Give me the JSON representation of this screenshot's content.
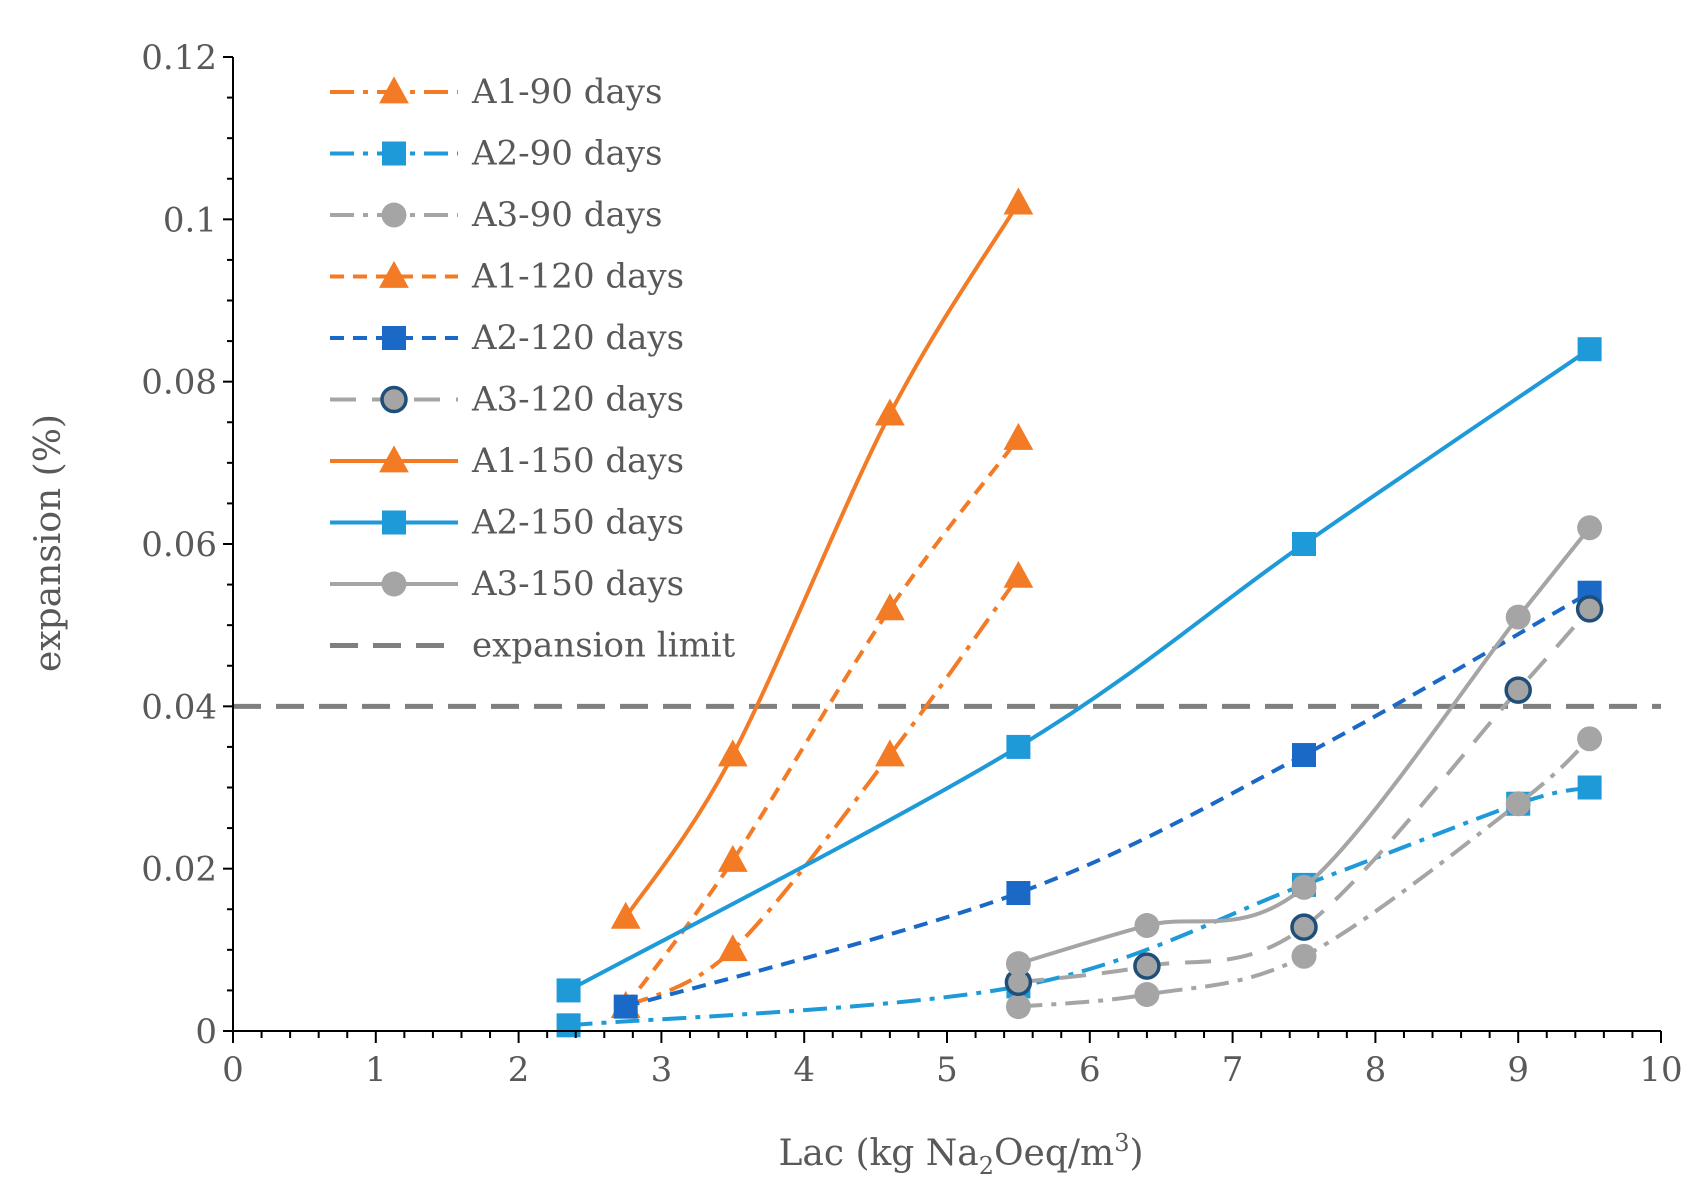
{
  "chart_data": {
    "type": "line",
    "title": "",
    "xlabel": {
      "prefix": "Lac (kg Na",
      "sub": "2",
      "mid": "Oeq/m",
      "sup": "3",
      "suffix": ")"
    },
    "ylabel": "expansion (%)",
    "xlim": [
      0,
      10
    ],
    "ylim": [
      0,
      0.12
    ],
    "xticks": [
      "0",
      "1",
      "2",
      "3",
      "4",
      "5",
      "6",
      "7",
      "8",
      "9",
      "10"
    ],
    "yticks": [
      "0",
      "0.02",
      "0.04",
      "0.06",
      "0.08",
      "0.1",
      "0.12"
    ],
    "legend_position": "top-left",
    "grid": false,
    "reference_line": {
      "name": "expansion limit",
      "y": 0.04,
      "color": "#7f7f7f"
    },
    "series": [
      {
        "name": "A1-90 days",
        "color": "#f47b25",
        "marker": "triangle",
        "dash": "dashdot",
        "x": [
          2.75,
          3.5,
          4.6,
          5.5
        ],
        "y": [
          0.003,
          0.01,
          0.034,
          0.056
        ]
      },
      {
        "name": "A2-90 days",
        "color": "#1f9ad8",
        "marker": "square",
        "dash": "dashdot",
        "x": [
          2.35,
          5.5,
          7.5,
          9,
          9.5
        ],
        "y": [
          0.0007,
          0.0055,
          0.018,
          0.028,
          0.03
        ]
      },
      {
        "name": "A3-90 days",
        "color": "#a5a5a5",
        "marker": "circle",
        "dash": "dashdot",
        "x": [
          5.5,
          6.4,
          7.5,
          9,
          9.5
        ],
        "y": [
          0.003,
          0.0045,
          0.0092,
          0.028,
          0.036
        ]
      },
      {
        "name": "A1-120 days",
        "color": "#f47b25",
        "marker": "triangle",
        "dash": "dash",
        "x": [
          2.75,
          3.5,
          4.6,
          5.5
        ],
        "y": [
          0.003,
          0.021,
          0.052,
          0.073
        ]
      },
      {
        "name": "A2-120 days",
        "color": "#1b69c7",
        "marker": "square",
        "dash": "dash",
        "x": [
          2.75,
          5.5,
          7.5,
          9.5
        ],
        "y": [
          0.003,
          0.017,
          0.034,
          0.054
        ]
      },
      {
        "name": "A3-120 days",
        "color": "#a5a5a5",
        "marker": "circle-outline",
        "dash": "longdash",
        "x": [
          5.5,
          6.4,
          7.5,
          9,
          9.5
        ],
        "y": [
          0.006,
          0.008,
          0.0128,
          0.042,
          0.052
        ]
      },
      {
        "name": "A1-150 days",
        "color": "#f47b25",
        "marker": "triangle",
        "dash": "solid",
        "x": [
          2.75,
          3.5,
          4.6,
          5.5
        ],
        "y": [
          0.014,
          0.034,
          0.076,
          0.102
        ]
      },
      {
        "name": "A2-150 days",
        "color": "#1f9ad8",
        "marker": "square",
        "dash": "solid",
        "x": [
          2.35,
          5.5,
          7.5,
          9.5
        ],
        "y": [
          0.005,
          0.035,
          0.06,
          0.084
        ]
      },
      {
        "name": "A3-150 days",
        "color": "#a5a5a5",
        "marker": "circle",
        "dash": "solid",
        "x": [
          5.5,
          6.4,
          7.5,
          9,
          9.5
        ],
        "y": [
          0.0083,
          0.013,
          0.0177,
          0.051,
          0.062
        ]
      }
    ]
  }
}
